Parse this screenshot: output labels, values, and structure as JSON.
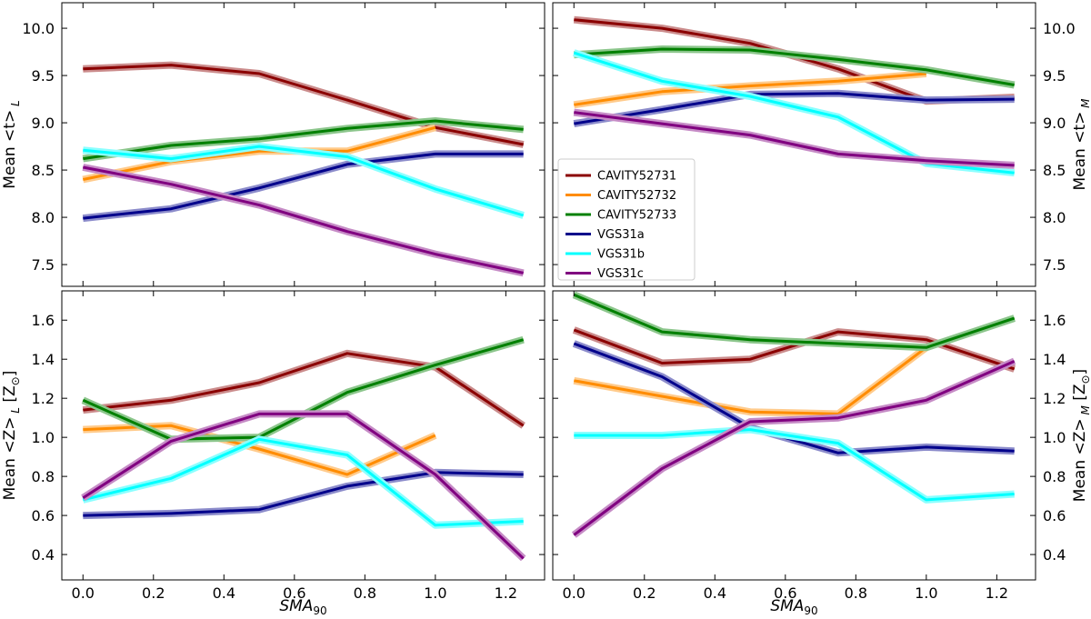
{
  "chart_data": {
    "type": "line",
    "legend": {
      "placement": "bottom-left of top-right panel",
      "entries": [
        "CAVITY52731",
        "CAVITY52732",
        "CAVITY52733",
        "VGS31a",
        "VGS31b",
        "VGS31c"
      ]
    },
    "series_colors": {
      "CAVITY52731": "#8b0000",
      "CAVITY52732": "#ff8c00",
      "CAVITY52733": "#008000",
      "VGS31a": "#00008b",
      "VGS31b": "#00ffff",
      "VGS31c": "#800080"
    },
    "x": [
      0.0,
      0.25,
      0.5,
      0.75,
      1.0,
      1.25
    ],
    "xlabel": "SMA",
    "xlabel_sub": "90",
    "xlim": [
      -0.06,
      1.31
    ],
    "xticks": [
      0.0,
      0.2,
      0.4,
      0.6,
      0.8,
      1.0,
      1.2
    ],
    "xtick_labels": [
      "0.0",
      "0.2",
      "0.4",
      "0.6",
      "0.8",
      "1.0",
      "1.2"
    ],
    "panels": [
      {
        "id": "age-light",
        "ylabel": "Mean  <t>",
        "ylabel_sub": "L",
        "ylabel_side": "left",
        "ylim": [
          7.27,
          10.27
        ],
        "yticks": [
          7.5,
          8.0,
          8.5,
          9.0,
          9.5,
          10.0
        ],
        "ytick_labels": [
          "7.5",
          "8.0",
          "8.5",
          "9.0",
          "9.5",
          "10.0"
        ],
        "show_xticklabels": false,
        "series": [
          {
            "name": "CAVITY52731",
            "values": [
              9.57,
              9.61,
              9.52,
              9.24,
              8.95,
              8.77
            ]
          },
          {
            "name": "CAVITY52732",
            "values": [
              8.4,
              8.59,
              8.7,
              8.7,
              8.95,
              null
            ]
          },
          {
            "name": "CAVITY52733",
            "values": [
              8.62,
              8.76,
              8.83,
              8.94,
              9.02,
              8.93
            ]
          },
          {
            "name": "VGS31a",
            "values": [
              7.99,
              8.09,
              8.31,
              8.56,
              8.67,
              8.67
            ]
          },
          {
            "name": "VGS31b",
            "values": [
              8.71,
              8.62,
              8.75,
              8.64,
              8.3,
              8.02
            ]
          },
          {
            "name": "VGS31c",
            "values": [
              8.53,
              8.35,
              8.13,
              7.85,
              7.61,
              7.41
            ]
          }
        ]
      },
      {
        "id": "age-mass",
        "ylabel": "Mean  <t>",
        "ylabel_sub": "M",
        "ylabel_side": "right",
        "ylim": [
          7.27,
          10.27
        ],
        "yticks": [
          7.5,
          8.0,
          8.5,
          9.0,
          9.5,
          10.0
        ],
        "ytick_labels": [
          "7.5",
          "8.0",
          "8.5",
          "9.0",
          "9.5",
          "10.0"
        ],
        "show_xticklabels": false,
        "series": [
          {
            "name": "CAVITY52731",
            "values": [
              10.09,
              10.0,
              9.84,
              9.57,
              9.23,
              9.27
            ]
          },
          {
            "name": "CAVITY52732",
            "values": [
              9.19,
              9.33,
              9.39,
              9.44,
              9.52,
              null
            ]
          },
          {
            "name": "CAVITY52733",
            "values": [
              9.72,
              9.78,
              9.77,
              9.67,
              9.56,
              9.4
            ]
          },
          {
            "name": "VGS31a",
            "values": [
              8.99,
              9.14,
              9.3,
              9.31,
              9.24,
              9.25
            ]
          },
          {
            "name": "VGS31b",
            "values": [
              9.74,
              9.44,
              9.28,
              9.06,
              8.57,
              8.47
            ]
          },
          {
            "name": "VGS31c",
            "values": [
              9.11,
              8.99,
              8.87,
              8.67,
              8.6,
              8.55
            ]
          }
        ]
      },
      {
        "id": "metallicity-light",
        "ylabel": "Mean  <Z>",
        "ylabel_sub": "L",
        "ylabel_unit": "[Z",
        "ylabel_unit_sub": "⊙",
        "ylabel_side": "left",
        "ylim": [
          0.27,
          1.75
        ],
        "yticks": [
          0.4,
          0.6,
          0.8,
          1.0,
          1.2,
          1.4,
          1.6
        ],
        "ytick_labels": [
          "0.4",
          "0.6",
          "0.8",
          "1.0",
          "1.2",
          "1.4",
          "1.6"
        ],
        "show_xticklabels": true,
        "series": [
          {
            "name": "CAVITY52731",
            "values": [
              1.14,
              1.19,
              1.28,
              1.43,
              1.36,
              1.06
            ]
          },
          {
            "name": "CAVITY52732",
            "values": [
              1.04,
              1.06,
              0.94,
              0.81,
              1.01,
              null
            ]
          },
          {
            "name": "CAVITY52733",
            "values": [
              1.19,
              0.99,
              1.0,
              1.23,
              1.37,
              1.5
            ]
          },
          {
            "name": "VGS31a",
            "values": [
              0.6,
              0.61,
              0.63,
              0.75,
              0.82,
              0.81
            ]
          },
          {
            "name": "VGS31b",
            "values": [
              0.68,
              0.79,
              0.99,
              0.91,
              0.55,
              0.57
            ]
          },
          {
            "name": "VGS31c",
            "values": [
              0.69,
              0.98,
              1.12,
              1.12,
              0.81,
              0.38
            ]
          }
        ]
      },
      {
        "id": "metallicity-mass",
        "ylabel": "Mean  <Z>",
        "ylabel_sub": "M",
        "ylabel_unit": "[Z",
        "ylabel_unit_sub": "⊙",
        "ylabel_side": "right",
        "ylim": [
          0.27,
          1.75
        ],
        "yticks": [
          0.4,
          0.6,
          0.8,
          1.0,
          1.2,
          1.4,
          1.6
        ],
        "ytick_labels": [
          "0.4",
          "0.6",
          "0.8",
          "1.0",
          "1.2",
          "1.4",
          "1.6"
        ],
        "show_xticklabels": true,
        "series": [
          {
            "name": "CAVITY52731",
            "values": [
              1.55,
              1.38,
              1.4,
              1.54,
              1.5,
              1.35
            ]
          },
          {
            "name": "CAVITY52732",
            "values": [
              1.29,
              1.21,
              1.13,
              1.12,
              1.46,
              null
            ]
          },
          {
            "name": "CAVITY52733",
            "values": [
              1.73,
              1.54,
              1.5,
              1.48,
              1.46,
              1.61
            ]
          },
          {
            "name": "VGS31a",
            "values": [
              1.48,
              1.31,
              1.05,
              0.92,
              0.95,
              0.93
            ]
          },
          {
            "name": "VGS31b",
            "values": [
              1.01,
              1.01,
              1.04,
              0.97,
              0.68,
              0.71
            ]
          },
          {
            "name": "VGS31c",
            "values": [
              0.5,
              0.84,
              1.08,
              1.1,
              1.19,
              1.39
            ]
          }
        ]
      }
    ]
  }
}
